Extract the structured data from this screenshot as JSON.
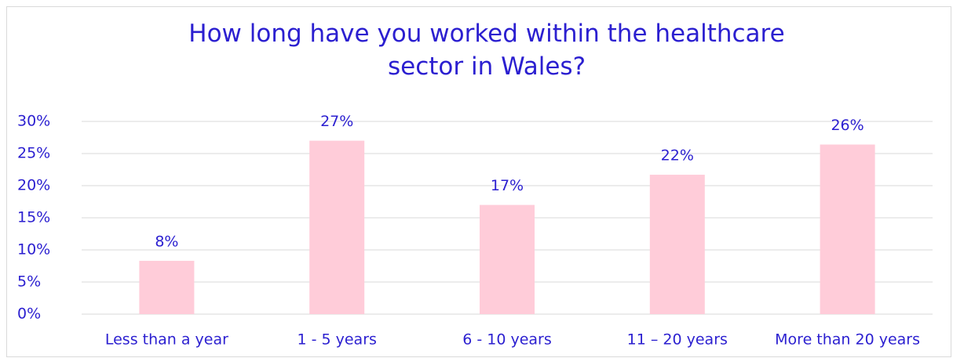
{
  "chart_data": {
    "type": "bar",
    "title": "How long have you worked within the healthcare sector in Wales?",
    "categories": [
      "Less than a year",
      "1 - 5 years",
      "6 - 10 years",
      "11 – 20 years",
      "More than 20 years"
    ],
    "values": [
      8.3,
      27,
      17,
      21.7,
      26.4
    ],
    "value_labels": [
      "8%",
      "27%",
      "17%",
      "22%",
      "26%"
    ],
    "color": "#ffccd9",
    "ylim": [
      0,
      30
    ],
    "yticks": [
      {
        "value": 0,
        "label": "0%"
      },
      {
        "value": 5,
        "label": "5%"
      },
      {
        "value": 10,
        "label": "10%"
      },
      {
        "value": 15,
        "label": "15%"
      },
      {
        "value": 20,
        "label": "20%"
      },
      {
        "value": 25,
        "label": "25%"
      },
      {
        "value": 30,
        "label": "30%"
      }
    ],
    "grid": true
  }
}
